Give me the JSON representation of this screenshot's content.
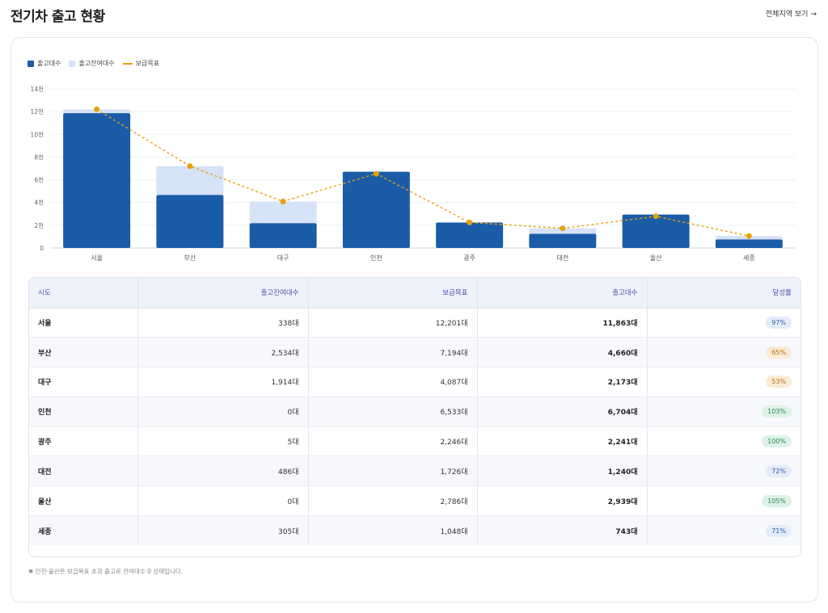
{
  "header": {
    "title": "전기차 출고 현황",
    "view_all": "전체지역 보기",
    "arrow": "→"
  },
  "legend": {
    "shipped": "출고대수",
    "remaining": "출고잔여대수",
    "target": "보급목표"
  },
  "colors": {
    "shipped": "#1a5ca8",
    "remaining": "#d6e2f7",
    "target": "#e8a20a",
    "grid": "#eef0f4",
    "axis": "#cfd4dc"
  },
  "chart_data": {
    "type": "bar",
    "stacked": true,
    "categories": [
      "서울",
      "부산",
      "대구",
      "인천",
      "광주",
      "대전",
      "울산",
      "세종"
    ],
    "series": [
      {
        "name": "출고대수",
        "values": [
          11863,
          4660,
          2173,
          6704,
          2241,
          1240,
          2939,
          743
        ]
      },
      {
        "name": "출고잔여대수",
        "values": [
          338,
          2534,
          1914,
          0,
          5,
          486,
          0,
          305
        ]
      }
    ],
    "line_series": {
      "name": "보급목표",
      "values": [
        12201,
        7194,
        4087,
        6533,
        2246,
        1726,
        2786,
        1048
      ],
      "style": "dashed"
    },
    "ylim": [
      0,
      14000
    ],
    "yticks": [
      0,
      2000,
      4000,
      6000,
      8000,
      10000,
      12000,
      14000
    ],
    "ytick_labels": [
      "0",
      "2천",
      "4천",
      "6천",
      "8천",
      "10천",
      "12천",
      "14천"
    ],
    "grid": true,
    "legend_position": "top-left"
  },
  "table": {
    "columns": [
      "시도",
      "출고잔여대수",
      "보급목표",
      "출고대수",
      "달성률"
    ],
    "rows": [
      {
        "region": "서울",
        "remaining": "338대",
        "target": "12,201대",
        "shipped": "11,863대",
        "rate": "97%",
        "rate_color": "blue"
      },
      {
        "region": "부산",
        "remaining": "2,534대",
        "target": "7,194대",
        "shipped": "4,660대",
        "rate": "65%",
        "rate_color": "orange"
      },
      {
        "region": "대구",
        "remaining": "1,914대",
        "target": "4,087대",
        "shipped": "2,173대",
        "rate": "53%",
        "rate_color": "orange"
      },
      {
        "region": "인천",
        "remaining": "0대",
        "target": "6,533대",
        "shipped": "6,704대",
        "rate": "103%",
        "rate_color": "green"
      },
      {
        "region": "광주",
        "remaining": "5대",
        "target": "2,246대",
        "shipped": "2,241대",
        "rate": "100%",
        "rate_color": "green"
      },
      {
        "region": "대전",
        "remaining": "486대",
        "target": "1,726대",
        "shipped": "1,240대",
        "rate": "72%",
        "rate_color": "blue"
      },
      {
        "region": "울산",
        "remaining": "0대",
        "target": "2,786대",
        "shipped": "2,939대",
        "rate": "105%",
        "rate_color": "green"
      },
      {
        "region": "세종",
        "remaining": "305대",
        "target": "1,048대",
        "shipped": "743대",
        "rate": "71%",
        "rate_color": "blue"
      }
    ]
  },
  "footnote": "✱ 인천·울산은 보급목표 초과 출고로 잔여대수 0 상태입니다."
}
